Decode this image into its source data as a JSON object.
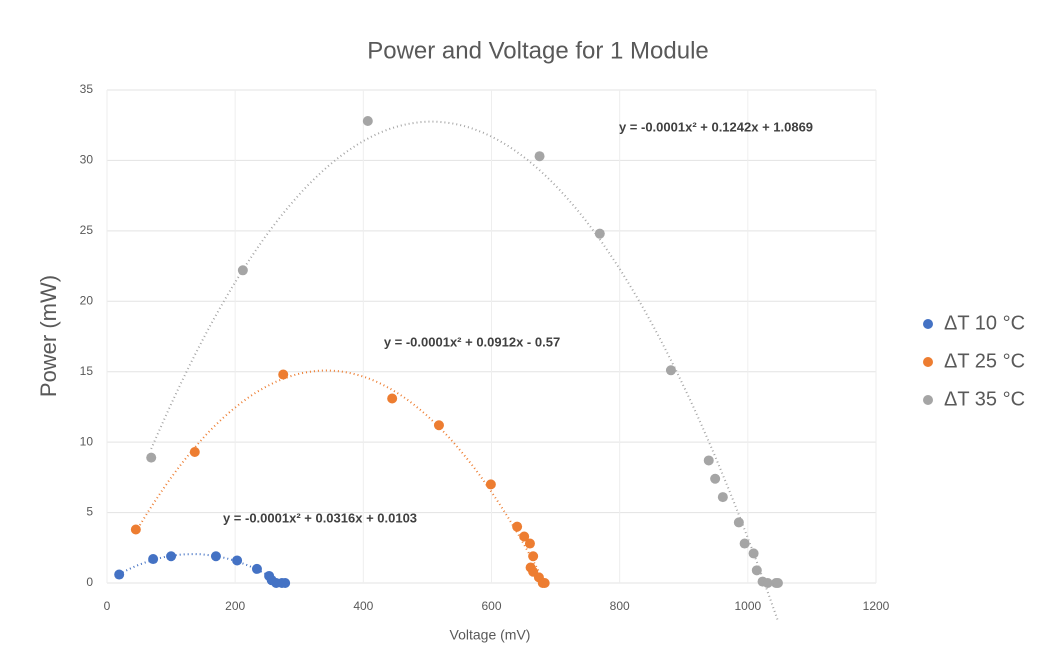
{
  "chart_data": {
    "type": "scatter",
    "title": "Power and Voltage for 1 Module",
    "x_label": "Voltage (mV)",
    "y_label": "Power (mW)",
    "xlim": [
      0,
      1200
    ],
    "xticks": [
      0,
      200,
      400,
      600,
      800,
      1000,
      1200
    ],
    "ylim": [
      0,
      35
    ],
    "yticks": [
      0,
      5,
      10,
      15,
      20,
      25,
      30,
      35
    ],
    "grid": true,
    "legend": "right",
    "trendline": "polynomial-2",
    "series": [
      {
        "name": "ΔT  10 °C",
        "color": "#4472c4",
        "x": [
          19,
          72,
          100,
          170,
          203,
          234,
          253,
          257,
          264,
          273,
          278
        ],
        "values": [
          0.6,
          1.7,
          1.9,
          1.9,
          1.6,
          1.0,
          0.5,
          0.2,
          0,
          0,
          0
        ]
      },
      {
        "name": "ΔT  25 °C",
        "color": "#ed7d31",
        "x": [
          45,
          137,
          275,
          445,
          518,
          599,
          640,
          651,
          660,
          665,
          661,
          665,
          674,
          680,
          683
        ],
        "values": [
          3.8,
          9.3,
          14.8,
          13.1,
          11.2,
          7.0,
          4.0,
          3.3,
          2.8,
          1.9,
          1.1,
          0.8,
          0.4,
          0,
          0
        ]
      },
      {
        "name": "ΔT  35 °C",
        "color": "#a5a5a5",
        "x": [
          69,
          212,
          407,
          675,
          769,
          880,
          939,
          949,
          961,
          986,
          995,
          1009,
          1014,
          1023,
          1031,
          1044,
          1047
        ],
        "values": [
          8.9,
          22.2,
          32.8,
          30.3,
          24.8,
          15.1,
          8.7,
          7.4,
          6.1,
          4.3,
          2.8,
          2.1,
          0.9,
          0.1,
          0,
          0,
          0
        ]
      }
    ],
    "annotations": [
      "y = -0.0001x² + 0.0316x + 0.0103",
      "y = -0.0001x² + 0.0912x - 0.57",
      "y = -0.0001x² + 0.1242x + 1.0869"
    ]
  }
}
